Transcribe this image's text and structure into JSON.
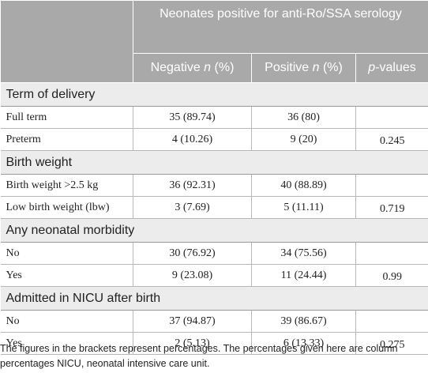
{
  "header": {
    "group_title": "Neonates positive for anti-Ro/SSA serology",
    "columns": [
      {
        "pre": "Negative ",
        "ital": "n",
        "post": " (%)"
      },
      {
        "pre": "Positive ",
        "ital": "n",
        "post": " (%)"
      },
      {
        "pre": "",
        "ital": "p",
        "post": "-values"
      }
    ]
  },
  "sections": [
    {
      "title": "Term of delivery",
      "rows": [
        {
          "label": "Full term",
          "negative": "35 (89.74)",
          "positive": "36 (80)",
          "p": ""
        },
        {
          "label": "Preterm",
          "negative": "4 (10.26)",
          "positive": "9 (20)",
          "p": "0.245"
        }
      ]
    },
    {
      "title": "Birth weight",
      "rows": [
        {
          "label": "Birth weight >2.5 kg",
          "negative": "36 (92.31)",
          "positive": "40 (88.89)",
          "p": ""
        },
        {
          "label": "Low birth weight (lbw)",
          "negative": "3 (7.69)",
          "positive": "5 (11.11)",
          "p": "0.719"
        }
      ]
    },
    {
      "title": "Any neonatal morbidity",
      "rows": [
        {
          "label": "No",
          "negative": "30 (76.92)",
          "positive": "34 (75.56)",
          "p": ""
        },
        {
          "label": "Yes",
          "negative": "9 (23.08)",
          "positive": "11 (24.44)",
          "p": "0.99"
        }
      ]
    },
    {
      "title": "Admitted in NICU after birth",
      "rows": [
        {
          "label": "No",
          "negative": "37 (94.87)",
          "positive": "39 (86.67)",
          "p": ""
        },
        {
          "label": "Yes",
          "negative": "2 (5.13)",
          "positive": "6 (13.33)",
          "p": "0.275"
        }
      ]
    }
  ],
  "footnote": "The figures in the brackets represent percentages. The percentages given here are column percentages NICU, neonatal intensive care unit.",
  "colors": {
    "header_bg": "#a9a9a9",
    "section_bg": "#ececec",
    "text": "#222222"
  }
}
